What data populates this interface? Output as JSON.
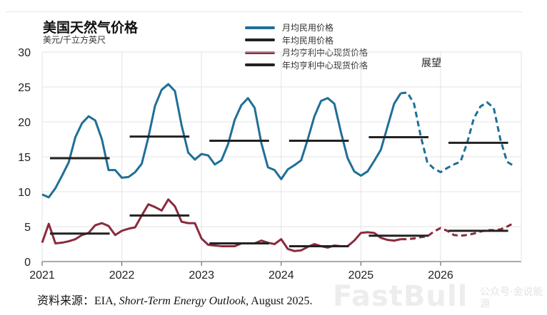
{
  "chart_data": {
    "type": "line",
    "title": "美国天然气价格",
    "ylabel": "美元/千立方英尺",
    "ylim": [
      0,
      30
    ],
    "yticks": [
      "0",
      "5",
      "10",
      "15",
      "20",
      "25",
      "30"
    ],
    "xticks": [
      "2021",
      "2022",
      "2023",
      "2024",
      "2025",
      "2026"
    ],
    "grid": true,
    "legend_position": "top-center",
    "annotation": "展望",
    "forecast_start": "2025-08",
    "x_start": "2021-01",
    "series": [
      {
        "name": "月均民用价格",
        "color": "#1f6f97",
        "type": "monthly",
        "values": [
          9.6,
          9.2,
          10.5,
          12.3,
          14.2,
          17.8,
          19.8,
          20.8,
          20.2,
          17.5,
          13.1,
          13.1,
          12.0,
          12.1,
          12.8,
          14.0,
          17.8,
          22.3,
          24.6,
          25.4,
          24.4,
          19.5,
          15.6,
          14.6,
          15.4,
          15.2,
          13.9,
          14.5,
          16.8,
          20.3,
          22.4,
          23.4,
          22.0,
          17.0,
          13.5,
          13.1,
          11.8,
          13.2,
          13.8,
          14.5,
          17.5,
          20.8,
          23.0,
          23.4,
          22.6,
          18.5,
          14.8,
          12.9,
          12.3,
          12.9,
          14.4,
          16.0,
          19.3,
          22.6,
          24.1,
          24.2,
          22.6,
          18.0,
          14.2,
          13.3,
          12.8,
          13.4,
          13.9,
          14.3,
          17.0,
          20.5,
          22.2,
          22.8,
          22.0,
          17.5,
          14.3,
          13.7
        ]
      },
      {
        "name": "年均民用价格",
        "color": "#222222",
        "type": "annual",
        "values": [
          14.8,
          17.9,
          17.3,
          17.3,
          17.8,
          17.0
        ]
      },
      {
        "name": "月均亨利中心现货价格",
        "color": "#8b2a3e",
        "type": "monthly",
        "values": [
          2.7,
          5.4,
          2.6,
          2.7,
          2.9,
          3.2,
          3.8,
          4.1,
          5.2,
          5.5,
          5.1,
          3.8,
          4.4,
          4.7,
          4.9,
          6.6,
          8.2,
          7.8,
          7.3,
          8.9,
          7.9,
          5.7,
          5.5,
          5.5,
          3.3,
          2.4,
          2.3,
          2.2,
          2.2,
          2.2,
          2.6,
          2.6,
          2.6,
          3.0,
          2.7,
          2.5,
          3.2,
          1.8,
          1.5,
          1.6,
          2.1,
          2.5,
          2.2,
          2.0,
          2.3,
          2.2,
          2.2,
          3.0,
          4.1,
          4.2,
          4.1,
          3.4,
          3.1,
          3.0,
          3.2,
          3.2,
          3.3,
          3.5,
          3.6,
          4.3,
          4.8,
          4.4,
          3.8,
          3.7,
          3.8,
          4.0,
          4.3,
          4.5,
          4.5,
          4.6,
          5.0,
          5.5
        ]
      },
      {
        "name": "年均亨利中心现货价格",
        "color": "#222222",
        "type": "annual",
        "values": [
          4.0,
          6.6,
          2.6,
          2.2,
          3.7,
          4.4
        ]
      }
    ]
  },
  "source": {
    "prefix": "资料来源：EIA, ",
    "italic": "Short-Term Energy Outlook,",
    "suffix": " August 2025."
  },
  "watermark": {
    "brand": "FastBull",
    "sub": "公众号·金说能源"
  }
}
